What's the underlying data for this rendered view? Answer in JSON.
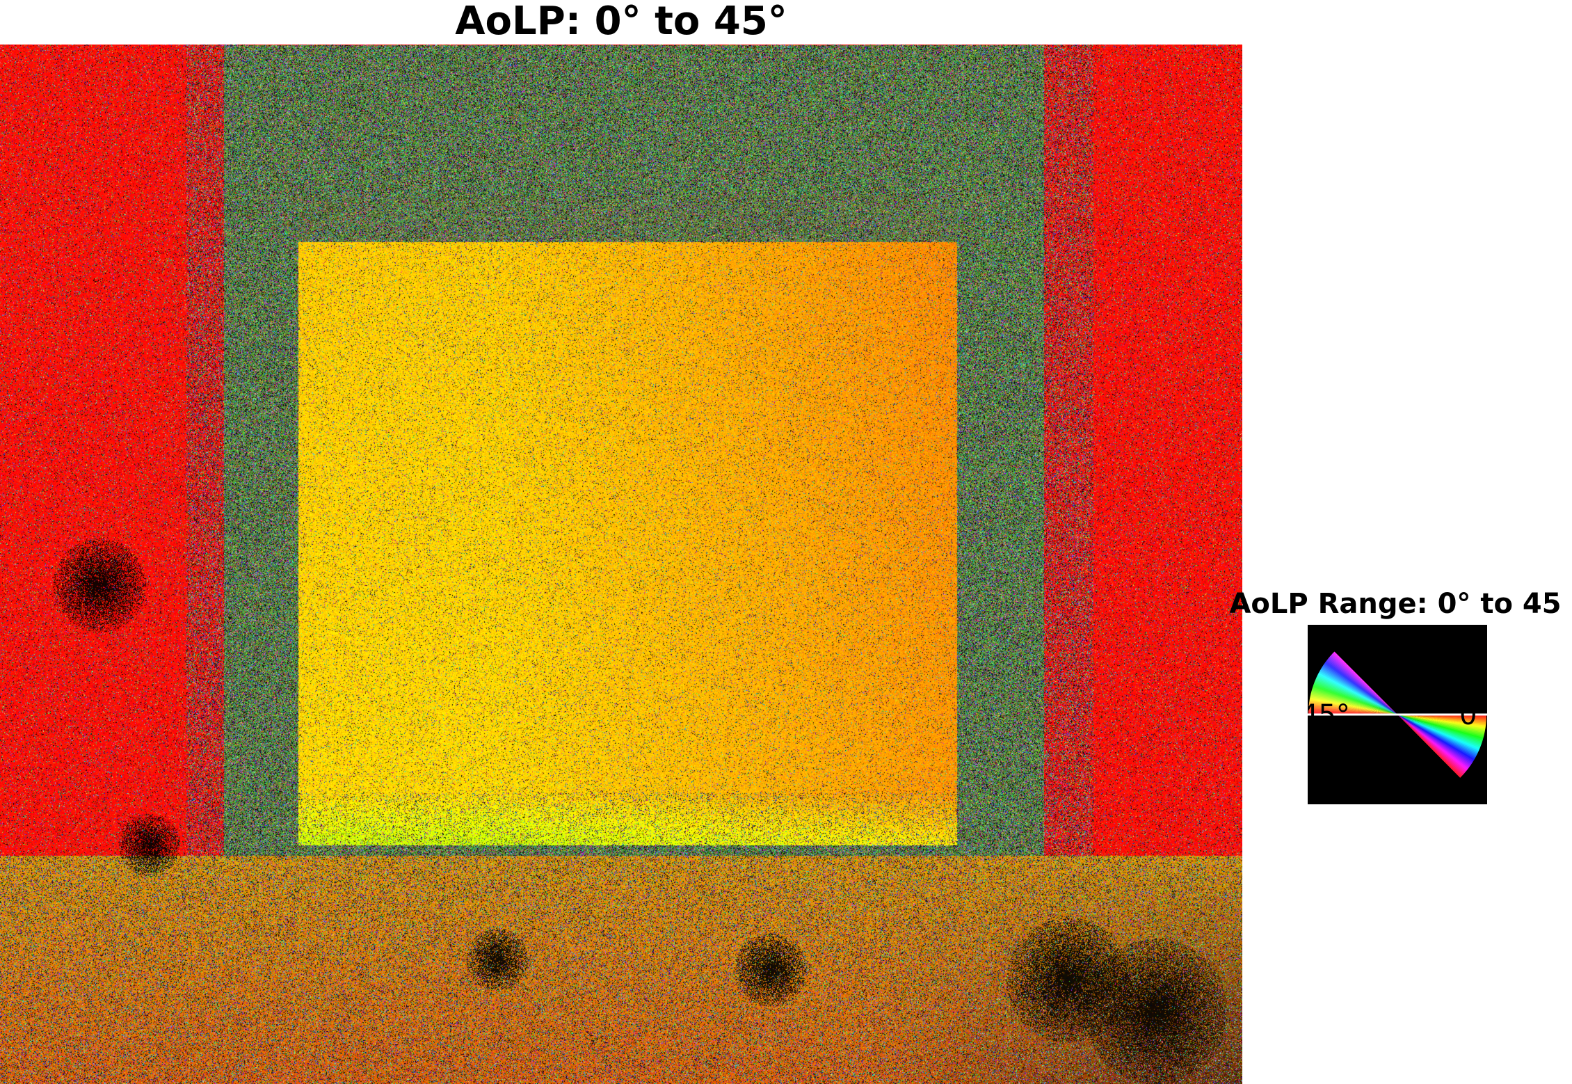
{
  "figure": {
    "title": "AoLP: 0° to 45°"
  },
  "legend": {
    "title": "AoLP Range: 0° to 45",
    "label_min": "0°",
    "label_max": "45°",
    "range_deg": [
      0,
      45
    ]
  },
  "palette": {
    "background_red": "#ff1a0a",
    "frame_green": "#4f7a52",
    "inner_yellow": "#ffd000",
    "inner_orange": "#f09a10",
    "dark_blob": "#100805"
  }
}
